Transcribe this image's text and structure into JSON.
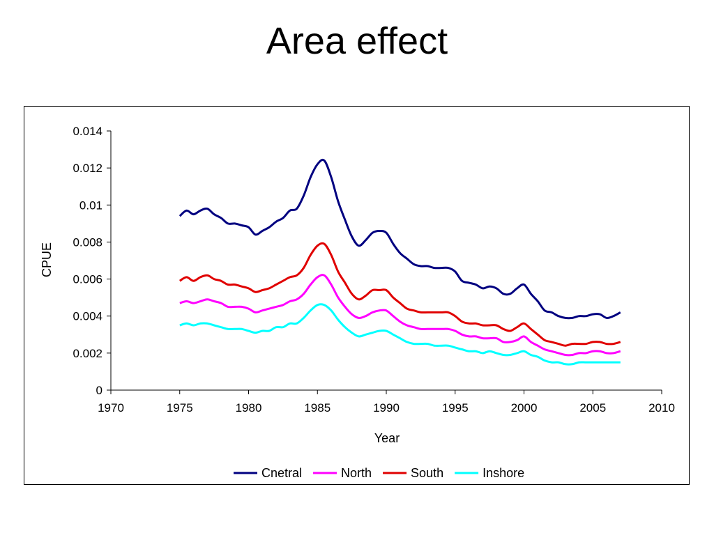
{
  "slide": {
    "title": "Area effect"
  },
  "chart_data": {
    "type": "line",
    "xlabel": "Year",
    "ylabel": "CPUE",
    "xlim": [
      1970,
      2010
    ],
    "ylim": [
      0,
      0.014
    ],
    "x_ticks": [
      "1970",
      "1975",
      "1980",
      "1985",
      "1990",
      "1995",
      "2000",
      "2005",
      "2010"
    ],
    "y_ticks": [
      "0",
      "0.002",
      "0.004",
      "0.006",
      "0.008",
      "0.01",
      "0.012",
      "0.014"
    ],
    "grid": false,
    "legend_position": "bottom",
    "x": [
      1975,
      1975.5,
      1976,
      1976.5,
      1977,
      1977.5,
      1978,
      1978.5,
      1979,
      1979.5,
      1980,
      1980.5,
      1981,
      1981.5,
      1982,
      1982.5,
      1983,
      1983.5,
      1984,
      1984.5,
      1985,
      1985.5,
      1986,
      1986.5,
      1987,
      1987.5,
      1988,
      1988.5,
      1989,
      1989.5,
      1990,
      1990.5,
      1991,
      1991.5,
      1992,
      1992.5,
      1993,
      1993.5,
      1994,
      1994.5,
      1995,
      1995.5,
      1996,
      1996.5,
      1997,
      1997.5,
      1998,
      1998.5,
      1999,
      1999.5,
      2000,
      2000.5,
      2001,
      2001.5,
      2002,
      2002.5,
      2003,
      2003.5,
      2004,
      2004.5,
      2005,
      2005.5,
      2006,
      2006.5,
      2007
    ],
    "series": [
      {
        "name": "Cnetral",
        "color": "#000080",
        "values": [
          0.0094,
          0.0097,
          0.0095,
          0.0097,
          0.0098,
          0.0095,
          0.0093,
          0.009,
          0.009,
          0.0089,
          0.0088,
          0.0084,
          0.0086,
          0.0088,
          0.0091,
          0.0093,
          0.0097,
          0.0098,
          0.0105,
          0.0115,
          0.0122,
          0.0124,
          0.0115,
          0.0102,
          0.0092,
          0.0083,
          0.0078,
          0.0081,
          0.0085,
          0.0086,
          0.0085,
          0.0079,
          0.0074,
          0.0071,
          0.0068,
          0.0067,
          0.0067,
          0.0066,
          0.0066,
          0.0066,
          0.0064,
          0.0059,
          0.0058,
          0.0057,
          0.0055,
          0.0056,
          0.0055,
          0.0052,
          0.0052,
          0.0055,
          0.0057,
          0.0052,
          0.0048,
          0.0043,
          0.0042,
          0.004,
          0.0039,
          0.0039,
          0.004,
          0.004,
          0.0041,
          0.0041,
          0.0039,
          0.004,
          0.0042
        ]
      },
      {
        "name": "North",
        "color": "#ff00ff",
        "values": [
          0.0047,
          0.0048,
          0.0047,
          0.0048,
          0.0049,
          0.0048,
          0.0047,
          0.0045,
          0.0045,
          0.0045,
          0.0044,
          0.0042,
          0.0043,
          0.0044,
          0.0045,
          0.0046,
          0.0048,
          0.0049,
          0.0052,
          0.0057,
          0.0061,
          0.0062,
          0.0057,
          0.005,
          0.0045,
          0.0041,
          0.0039,
          0.004,
          0.0042,
          0.0043,
          0.0043,
          0.004,
          0.0037,
          0.0035,
          0.0034,
          0.0033,
          0.0033,
          0.0033,
          0.0033,
          0.0033,
          0.0032,
          0.003,
          0.0029,
          0.0029,
          0.0028,
          0.0028,
          0.0028,
          0.0026,
          0.0026,
          0.0027,
          0.0029,
          0.0026,
          0.0024,
          0.0022,
          0.0021,
          0.002,
          0.0019,
          0.0019,
          0.002,
          0.002,
          0.0021,
          0.0021,
          0.002,
          0.002,
          0.0021
        ]
      },
      {
        "name": "South",
        "color": "#e00000",
        "values": [
          0.0059,
          0.0061,
          0.0059,
          0.0061,
          0.0062,
          0.006,
          0.0059,
          0.0057,
          0.0057,
          0.0056,
          0.0055,
          0.0053,
          0.0054,
          0.0055,
          0.0057,
          0.0059,
          0.0061,
          0.0062,
          0.0066,
          0.0073,
          0.0078,
          0.0079,
          0.0073,
          0.0064,
          0.0058,
          0.0052,
          0.0049,
          0.0051,
          0.0054,
          0.0054,
          0.0054,
          0.005,
          0.0047,
          0.0044,
          0.0043,
          0.0042,
          0.0042,
          0.0042,
          0.0042,
          0.0042,
          0.004,
          0.0037,
          0.0036,
          0.0036,
          0.0035,
          0.0035,
          0.0035,
          0.0033,
          0.0032,
          0.0034,
          0.0036,
          0.0033,
          0.003,
          0.0027,
          0.0026,
          0.0025,
          0.0024,
          0.0025,
          0.0025,
          0.0025,
          0.0026,
          0.0026,
          0.0025,
          0.0025,
          0.0026
        ]
      },
      {
        "name": "Inshore",
        "color": "#00ffff",
        "values": [
          0.0035,
          0.0036,
          0.0035,
          0.0036,
          0.0036,
          0.0035,
          0.0034,
          0.0033,
          0.0033,
          0.0033,
          0.0032,
          0.0031,
          0.0032,
          0.0032,
          0.0034,
          0.0034,
          0.0036,
          0.0036,
          0.0039,
          0.0043,
          0.0046,
          0.0046,
          0.0043,
          0.0038,
          0.0034,
          0.0031,
          0.0029,
          0.003,
          0.0031,
          0.0032,
          0.0032,
          0.003,
          0.0028,
          0.0026,
          0.0025,
          0.0025,
          0.0025,
          0.0024,
          0.0024,
          0.0024,
          0.0023,
          0.0022,
          0.0021,
          0.0021,
          0.002,
          0.0021,
          0.002,
          0.0019,
          0.0019,
          0.002,
          0.0021,
          0.0019,
          0.0018,
          0.0016,
          0.0015,
          0.0015,
          0.0014,
          0.0014,
          0.0015,
          0.0015,
          0.0015,
          0.0015,
          0.0015,
          0.0015,
          0.0015
        ]
      }
    ]
  }
}
